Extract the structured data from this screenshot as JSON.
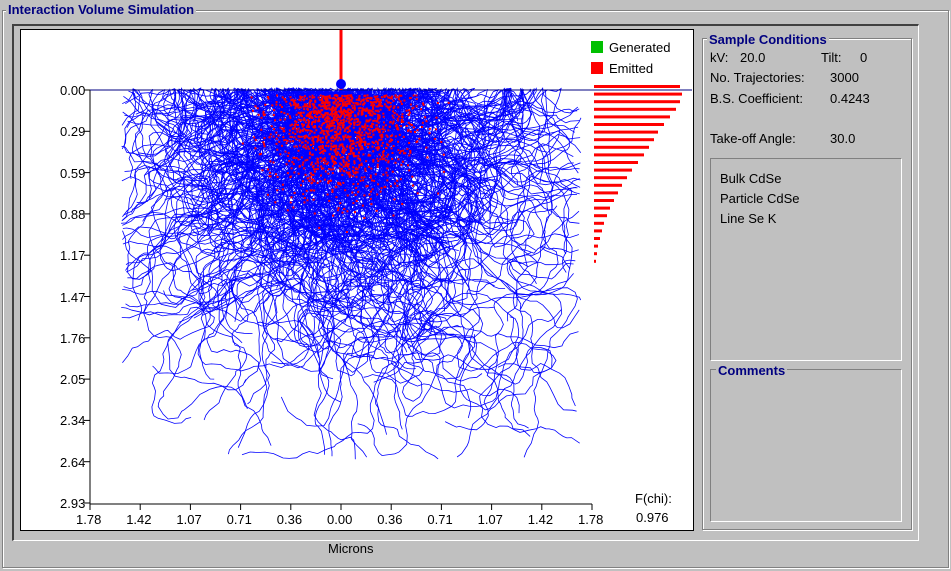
{
  "window": {
    "title": "Interaction Volume Simulation"
  },
  "plot": {
    "y_ticks": [
      "0.00",
      "0.29",
      "0.59",
      "0.88",
      "1.17",
      "1.47",
      "1.76",
      "2.05",
      "2.34",
      "2.64",
      "2.93"
    ],
    "x_ticks": [
      "1.78",
      "1.42",
      "1.07",
      "0.71",
      "0.36",
      "0.00",
      "0.36",
      "0.71",
      "1.07",
      "1.42",
      "1.78"
    ],
    "x_axis_label": "Microns",
    "legend": [
      {
        "label": "Generated",
        "color": "#00c000"
      },
      {
        "label": "Emitted",
        "color": "#ff0000"
      }
    ],
    "fchi_label": "F(chi):",
    "fchi_value": "0.976",
    "colors": {
      "trajectory": "#0000ff",
      "emitted": "#ff0000",
      "beam": "#ff0000"
    }
  },
  "sample_conditions": {
    "title": "Sample Conditions",
    "kv_label": "kV:",
    "kv_value": "20.0",
    "tilt_label": "Tilt:",
    "tilt_value": "0",
    "trajectories_label": "No. Trajectories:",
    "trajectories_value": "3000",
    "bs_label": "B.S. Coefficient:",
    "bs_value": "0.4243",
    "takeoff_label": "Take-off Angle:",
    "takeoff_value": "30.0",
    "materials": [
      "Bulk CdSe",
      "Particle CdSe",
      "Line Se K"
    ]
  },
  "comments": {
    "title": "Comments",
    "text": ""
  }
}
